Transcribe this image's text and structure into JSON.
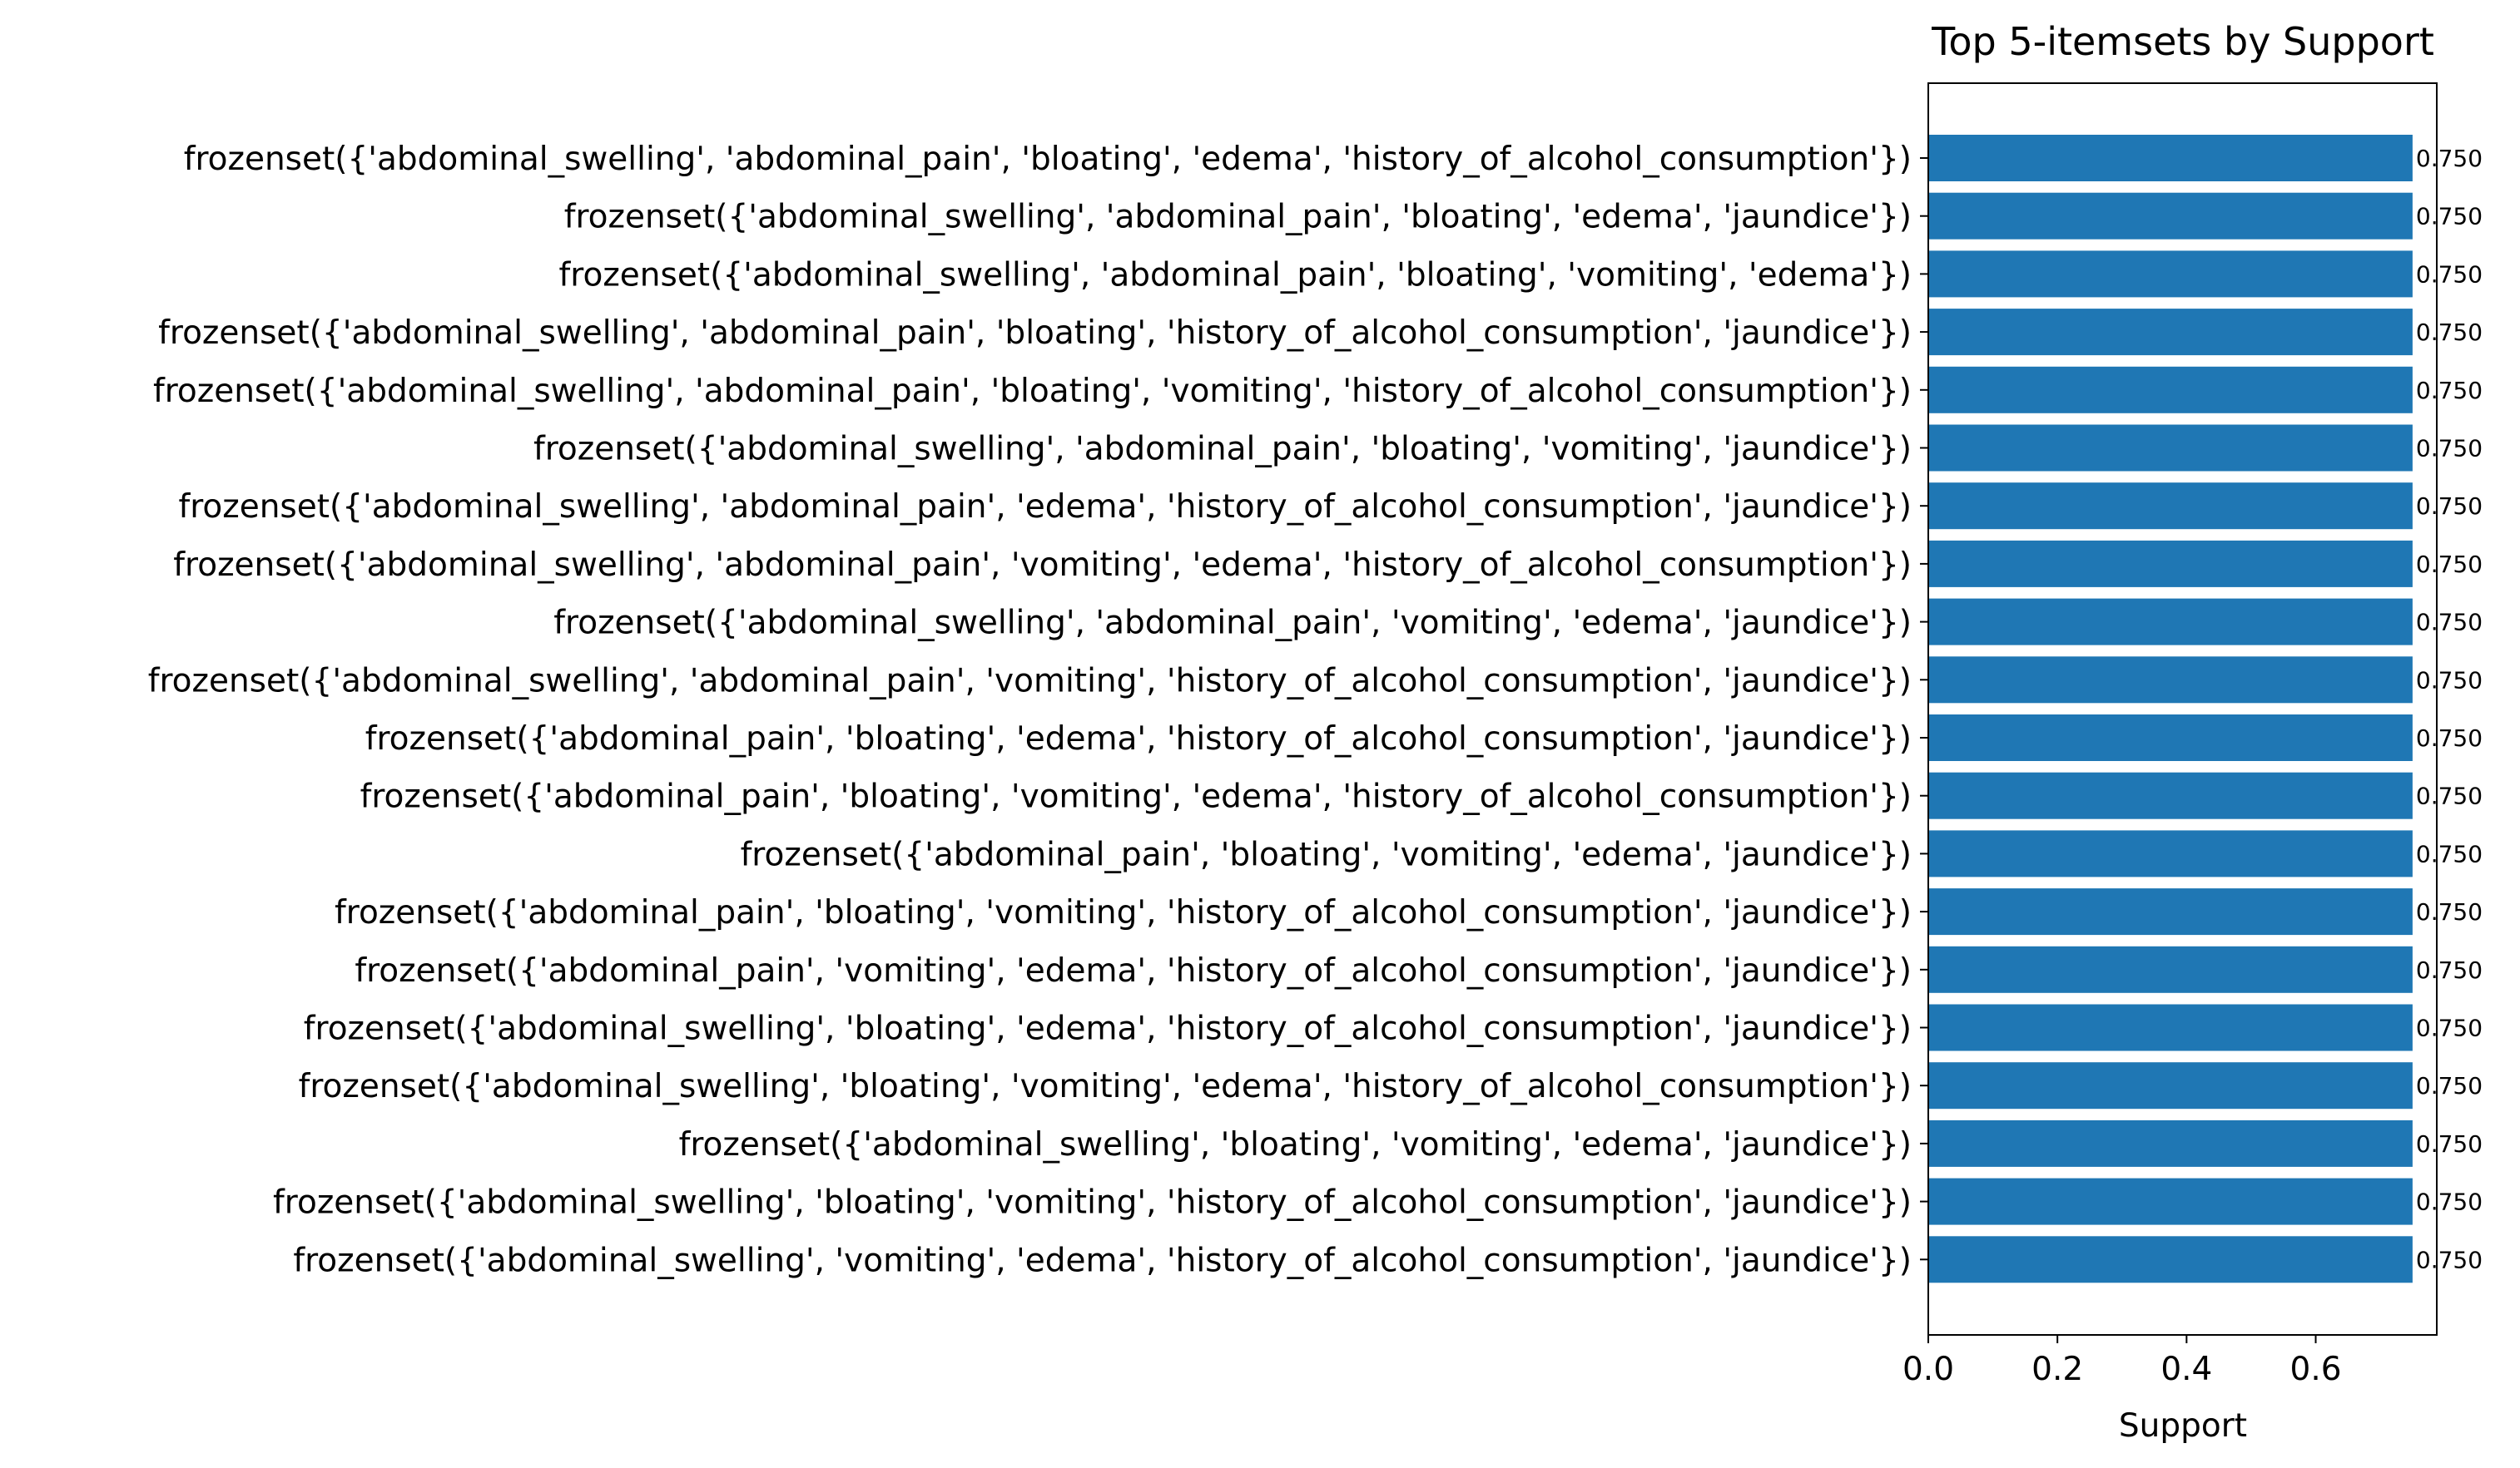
{
  "chart_data": {
    "type": "bar",
    "orientation": "horizontal",
    "title": "Top 5-itemsets by Support",
    "xlabel": "Support",
    "ylabel": "",
    "xlim": [
      0,
      0.7875
    ],
    "xticks": [
      0.0,
      0.2,
      0.4,
      0.6
    ],
    "xtick_labels": [
      "0.0",
      "0.2",
      "0.4",
      "0.6"
    ],
    "grid": false,
    "bar_color": "#1f77b4",
    "categories": [
      "frozenset({'abdominal_swelling', 'abdominal_pain', 'bloating', 'edema', 'history_of_alcohol_consumption'})",
      "frozenset({'abdominal_swelling', 'abdominal_pain', 'bloating', 'edema', 'jaundice'})",
      "frozenset({'abdominal_swelling', 'abdominal_pain', 'bloating', 'vomiting', 'edema'})",
      "frozenset({'abdominal_swelling', 'abdominal_pain', 'bloating', 'history_of_alcohol_consumption', 'jaundice'})",
      "frozenset({'abdominal_swelling', 'abdominal_pain', 'bloating', 'vomiting', 'history_of_alcohol_consumption'})",
      "frozenset({'abdominal_swelling', 'abdominal_pain', 'bloating', 'vomiting', 'jaundice'})",
      "frozenset({'abdominal_swelling', 'abdominal_pain', 'edema', 'history_of_alcohol_consumption', 'jaundice'})",
      "frozenset({'abdominal_swelling', 'abdominal_pain', 'vomiting', 'edema', 'history_of_alcohol_consumption'})",
      "frozenset({'abdominal_swelling', 'abdominal_pain', 'vomiting', 'edema', 'jaundice'})",
      "frozenset({'abdominal_swelling', 'abdominal_pain', 'vomiting', 'history_of_alcohol_consumption', 'jaundice'})",
      "frozenset({'abdominal_pain', 'bloating', 'edema', 'history_of_alcohol_consumption', 'jaundice'})",
      "frozenset({'abdominal_pain', 'bloating', 'vomiting', 'edema', 'history_of_alcohol_consumption'})",
      "frozenset({'abdominal_pain', 'bloating', 'vomiting', 'edema', 'jaundice'})",
      "frozenset({'abdominal_pain', 'bloating', 'vomiting', 'history_of_alcohol_consumption', 'jaundice'})",
      "frozenset({'abdominal_pain', 'vomiting', 'edema', 'history_of_alcohol_consumption', 'jaundice'})",
      "frozenset({'abdominal_swelling', 'bloating', 'edema', 'history_of_alcohol_consumption', 'jaundice'})",
      "frozenset({'abdominal_swelling', 'bloating', 'vomiting', 'edema', 'history_of_alcohol_consumption'})",
      "frozenset({'abdominal_swelling', 'bloating', 'vomiting', 'edema', 'jaundice'})",
      "frozenset({'abdominal_swelling', 'bloating', 'vomiting', 'history_of_alcohol_consumption', 'jaundice'})",
      "frozenset({'abdominal_swelling', 'vomiting', 'edema', 'history_of_alcohol_consumption', 'jaundice'})"
    ],
    "values": [
      0.75,
      0.75,
      0.75,
      0.75,
      0.75,
      0.75,
      0.75,
      0.75,
      0.75,
      0.75,
      0.75,
      0.75,
      0.75,
      0.75,
      0.75,
      0.75,
      0.75,
      0.75,
      0.75,
      0.75
    ],
    "value_labels": [
      "0.750",
      "0.750",
      "0.750",
      "0.750",
      "0.750",
      "0.750",
      "0.750",
      "0.750",
      "0.750",
      "0.750",
      "0.750",
      "0.750",
      "0.750",
      "0.750",
      "0.750",
      "0.750",
      "0.750",
      "0.750",
      "0.750",
      "0.750"
    ]
  }
}
